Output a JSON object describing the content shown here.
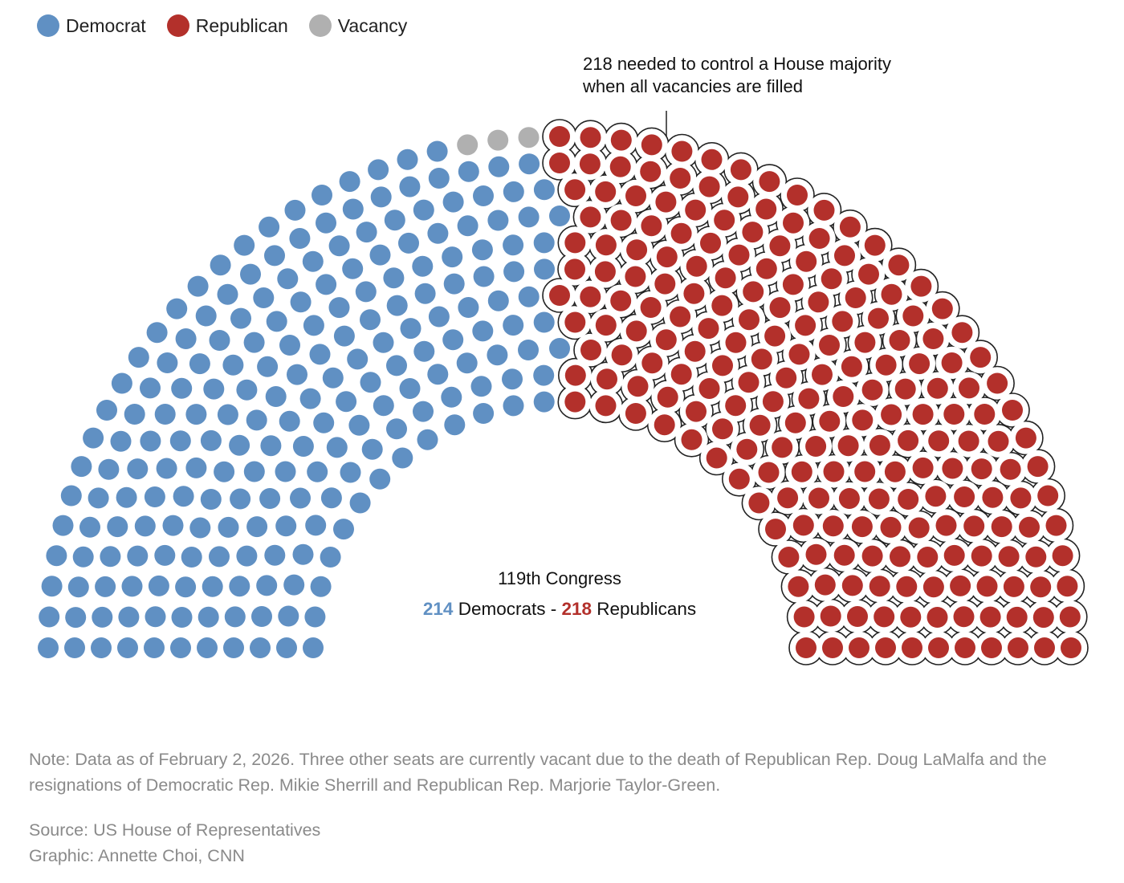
{
  "chart_data": {
    "type": "parliament",
    "total_seats": 435,
    "series": [
      {
        "name": "Democrat",
        "value": 214,
        "color": "#6090c3"
      },
      {
        "name": "Vacancy",
        "value": 3,
        "color": "#b0b0b0"
      },
      {
        "name": "Republican",
        "value": 218,
        "color": "#b3302b"
      }
    ],
    "legend_position": "top-left",
    "annotation": [
      "218 needed to control a House majority",
      "when all vacancies are filled"
    ],
    "center_title": "119th Congress",
    "summary": {
      "dem_count": "214",
      "dem_label": " Democrats - ",
      "rep_count": "218",
      "rep_label": " Republicans"
    }
  },
  "notes": {
    "note": "Note: Data as of February 2, 2026. Three other seats are currently vacant due to the death of Republican Rep. Doug LaMalfa and the resignations of Democratic Rep. Mikie Sherrill and Republican Rep. Marjorie Taylor-Green.",
    "source": "Source: US House of Representatives",
    "graphic": "Graphic: Annette Choi, CNN"
  }
}
